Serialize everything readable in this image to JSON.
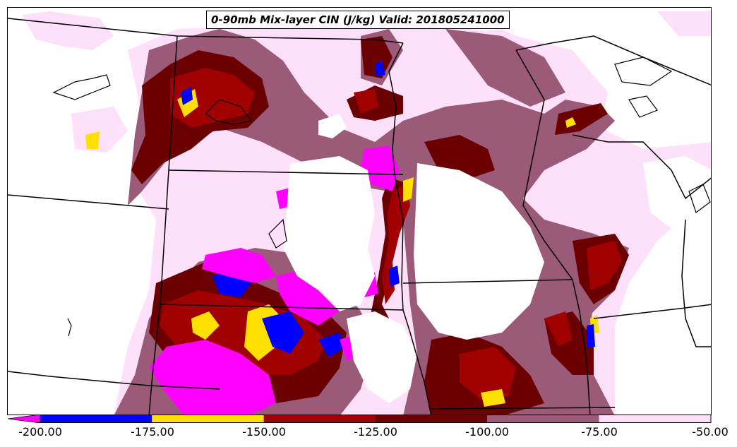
{
  "title": "0-90mb Mix-layer CIN (J/kg) Valid: 201805241000",
  "colorbar": {
    "levels": [
      {
        "from": -200,
        "to": -175,
        "color": "#0000ff"
      },
      {
        "from": -175,
        "to": -150,
        "color": "#ffe000"
      },
      {
        "from": -150,
        "to": -125,
        "color": "#a00000"
      },
      {
        "from": -125,
        "to": -100,
        "color": "#6a0000"
      },
      {
        "from": -100,
        "to": -75,
        "color": "#9a5a78"
      },
      {
        "from": -75,
        "to": -50,
        "color": "#ffe0fa"
      }
    ],
    "under_color": "#ff00ff",
    "tick_labels": [
      "-200.00",
      "-175.00",
      "-150.00",
      "-125.00",
      "-100.00",
      "-75.00",
      "-50.00"
    ]
  },
  "colors": {
    "magenta": "#ff00ff",
    "blue": "#0000ff",
    "yellow": "#ffe000",
    "dark_red": "#a00000",
    "maroon": "#6a0000",
    "mauve": "#9a5a78",
    "light_pink": "#ffe0fa",
    "boundary": "#000000"
  }
}
